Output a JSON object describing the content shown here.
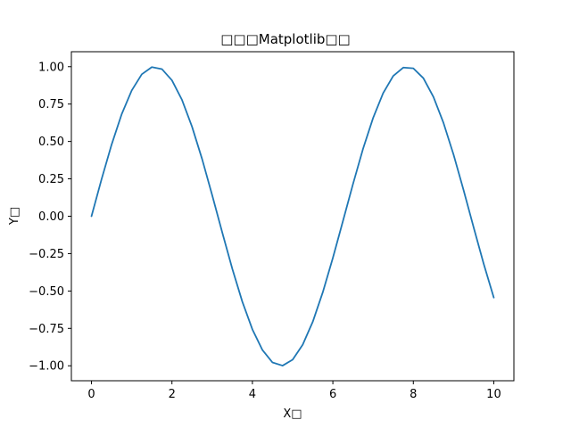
{
  "chart_data": {
    "type": "line",
    "title": "□□□Matplotlib□□",
    "xlabel": "X□",
    "ylabel": "Y□",
    "xlim": [
      -0.5,
      10.5
    ],
    "ylim": [
      -1.1,
      1.1
    ],
    "grid": false,
    "x_ticks": [
      0,
      2,
      4,
      6,
      8,
      10
    ],
    "x_tick_labels": [
      "0",
      "2",
      "4",
      "6",
      "8",
      "10"
    ],
    "y_ticks": [
      -1.0,
      -0.75,
      -0.5,
      -0.25,
      0.0,
      0.25,
      0.5,
      0.75,
      1.0
    ],
    "y_tick_labels": [
      "−1.00",
      "−0.75",
      "−0.50",
      "−0.25",
      "0.00",
      "0.25",
      "0.50",
      "0.75",
      "1.00"
    ],
    "series": [
      {
        "color": "#1f77b4",
        "x": [
          0,
          0.25,
          0.5,
          0.75,
          1,
          1.25,
          1.5,
          1.75,
          2,
          2.25,
          2.5,
          2.75,
          3,
          3.25,
          3.5,
          3.75,
          4,
          4.25,
          4.5,
          4.75,
          5,
          5.25,
          5.5,
          5.75,
          6,
          6.25,
          6.5,
          6.75,
          7,
          7.25,
          7.5,
          7.75,
          8,
          8.25,
          8.5,
          8.75,
          9,
          9.25,
          9.5,
          9.75,
          10
        ],
        "y": [
          0.0,
          0.247,
          0.479,
          0.682,
          0.841,
          0.949,
          0.997,
          0.984,
          0.909,
          0.778,
          0.598,
          0.382,
          0.141,
          -0.108,
          -0.351,
          -0.572,
          -0.757,
          -0.895,
          -0.978,
          -0.999,
          -0.959,
          -0.859,
          -0.706,
          -0.508,
          -0.279,
          -0.033,
          0.215,
          0.451,
          0.657,
          0.823,
          0.938,
          0.994,
          0.989,
          0.923,
          0.798,
          0.624,
          0.412,
          0.174,
          -0.075,
          -0.319,
          -0.544
        ]
      }
    ]
  }
}
